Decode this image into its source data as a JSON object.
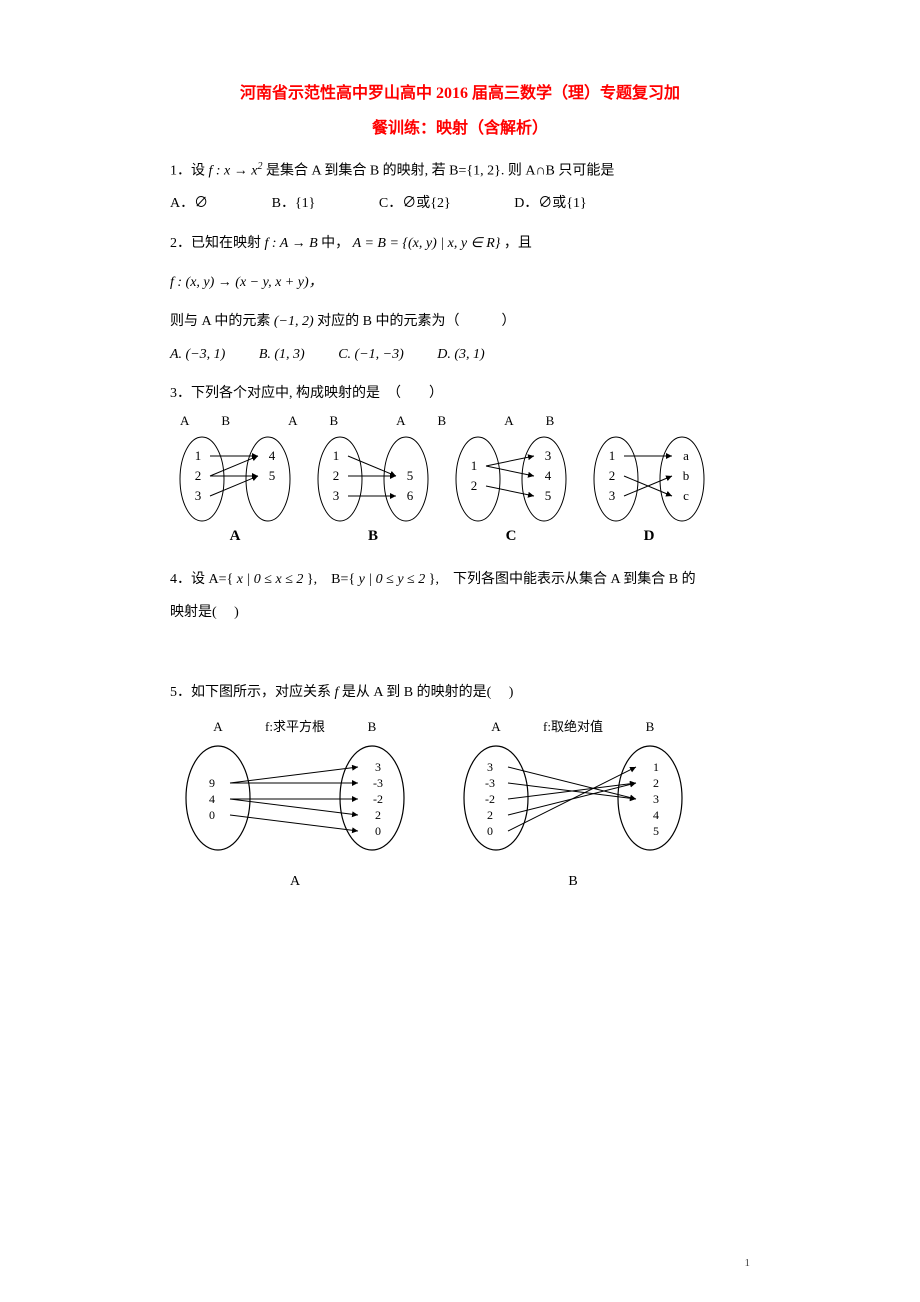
{
  "title_line1": "河南省示范性高中罗山高中 2016 届高三数学（理）专题复习加",
  "title_line2": "餐训练：映射（含解析）",
  "q1": {
    "stem_pre": "1．设",
    "stem_fx": "f : x → x",
    "stem_post": " 是集合 A 到集合 B 的映射, 若 B={1, 2}. 则 A∩B 只可能是",
    "A": "A．∅",
    "B": "B．{1}",
    "C": "C．∅或{2}",
    "D": "D．∅或{1}"
  },
  "q2": {
    "line1_pre": "2．已知在映射 ",
    "line1_map": "f : A → B",
    "line1_mid": "中， ",
    "line1_set": "A = B = {(x, y) | x, y ∈ R}",
    "line1_post": "，且",
    "line2": "f : (x, y) → (x − y, x + y)，",
    "line3_pre": "则与 A 中的元素 ",
    "line3_elem": "(−1, 2)",
    "line3_post": " 对应的 B 中的元素为（　　　）",
    "A": "A. (−3, 1)",
    "B": "B. (1, 3)",
    "C": "C. (−1, −3)",
    "D": "D. (3, 1)"
  },
  "q3": {
    "stem": "3．下列各个对应中, 构成映射的是　（　　）",
    "labels": {
      "A": "A",
      "B": "B"
    },
    "diagrams": {
      "A": {
        "left": [
          "1",
          "2",
          "3"
        ],
        "right": [
          "4",
          "5"
        ],
        "edges": [
          [
            0,
            0
          ],
          [
            1,
            0
          ],
          [
            1,
            1
          ],
          [
            2,
            1
          ]
        ],
        "tag": "A"
      },
      "B": {
        "left": [
          "1",
          "2",
          "3"
        ],
        "right": [
          "5",
          "6"
        ],
        "edges": [
          [
            0,
            0
          ],
          [
            1,
            0
          ],
          [
            2,
            1
          ]
        ],
        "tag": "B",
        "rightOffset": 1
      },
      "C": {
        "left": [
          "1",
          "2"
        ],
        "right": [
          "3",
          "4",
          "5"
        ],
        "edges": [
          [
            0,
            0
          ],
          [
            0,
            1
          ],
          [
            1,
            2
          ]
        ],
        "tag": "C",
        "leftOffset": 0.5
      },
      "D": {
        "left": [
          "1",
          "2",
          "3"
        ],
        "right": [
          "a",
          "b",
          "c"
        ],
        "edges": [
          [
            0,
            0
          ],
          [
            1,
            2
          ],
          [
            2,
            1
          ]
        ],
        "tag": "D"
      }
    }
  },
  "q4": {
    "line1_pre": "4．设 A={ ",
    "line1_setA": "x | 0 ≤ x ≤ 2",
    "line1_mid": " },　B={ ",
    "line1_setB": "y | 0 ≤ y ≤ 2",
    "line1_post": " },　下列各图中能表示从集合 A 到集合 B 的",
    "line2": "映射是(　 )"
  },
  "q5": {
    "stem_pre": "5．如下图所示，对应关系 ",
    "stem_f": "f",
    "stem_post": " 是从 A 到 B 的映射的是(　 )",
    "diagA": {
      "labelA": "A",
      "labelB": "B",
      "fn": "f:求平方根",
      "left": [
        "9",
        "4",
        "0"
      ],
      "right": [
        "3",
        "-3",
        "-2",
        "2",
        "0"
      ],
      "edges": [
        [
          0,
          0
        ],
        [
          0,
          1
        ],
        [
          1,
          2
        ],
        [
          1,
          3
        ],
        [
          2,
          4
        ]
      ],
      "tag": "A"
    },
    "diagB": {
      "labelA": "A",
      "labelB": "B",
      "fn": "f:取绝对值",
      "left": [
        "3",
        "-3",
        "-2",
        "2",
        "0"
      ],
      "right": [
        "1",
        "2",
        "3",
        "4",
        "5"
      ],
      "edges": [
        [
          0,
          2
        ],
        [
          1,
          2
        ],
        [
          2,
          1
        ],
        [
          3,
          1
        ],
        [
          4,
          0
        ]
      ],
      "tag": "B"
    }
  },
  "colors": {
    "text": "#000000",
    "title": "#ff0000",
    "bg": "#ffffff"
  },
  "page_number": "1"
}
